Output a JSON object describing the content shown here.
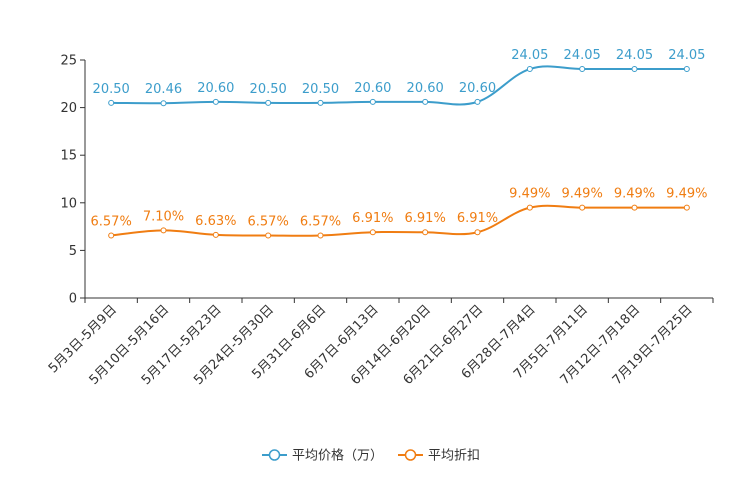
{
  "chart_data": {
    "type": "line",
    "title": "",
    "xlabel": "",
    "ylabel": "",
    "ylim": [
      0,
      25
    ],
    "yticks": [
      0,
      5,
      10,
      15,
      20,
      25
    ],
    "categories": [
      "5月3日-5月9日",
      "5月10日-5月16日",
      "5月17日-5月23日",
      "5月24日-5月30日",
      "5月31日-6月6日",
      "6月7日-6月13日",
      "6月14日-6月20日",
      "6月21日-6月27日",
      "6月28日-7月4日",
      "7月5日-7月11日",
      "7月12日-7月18日",
      "7月19日-7月25日"
    ],
    "series": [
      {
        "name": "平均价格（万）",
        "color": "#3c9dcb",
        "values": [
          20.5,
          20.46,
          20.6,
          20.5,
          20.5,
          20.6,
          20.6,
          20.6,
          24.05,
          24.05,
          24.05,
          24.05
        ],
        "labels": [
          "20.50",
          "20.46",
          "20.60",
          "20.50",
          "20.50",
          "20.60",
          "20.60",
          "20.60",
          "24.05",
          "24.05",
          "24.05",
          "24.05"
        ]
      },
      {
        "name": "平均折扣",
        "color": "#f07d12",
        "values": [
          6.57,
          7.1,
          6.63,
          6.57,
          6.57,
          6.91,
          6.91,
          6.91,
          9.49,
          9.49,
          9.49,
          9.49
        ],
        "labels": [
          "6.57%",
          "7.10%",
          "6.63%",
          "6.57%",
          "6.57%",
          "6.91%",
          "6.91%",
          "6.91%",
          "9.49%",
          "9.49%",
          "9.49%",
          "9.49%"
        ]
      }
    ],
    "legend_position": "bottom-center",
    "grid": false
  }
}
